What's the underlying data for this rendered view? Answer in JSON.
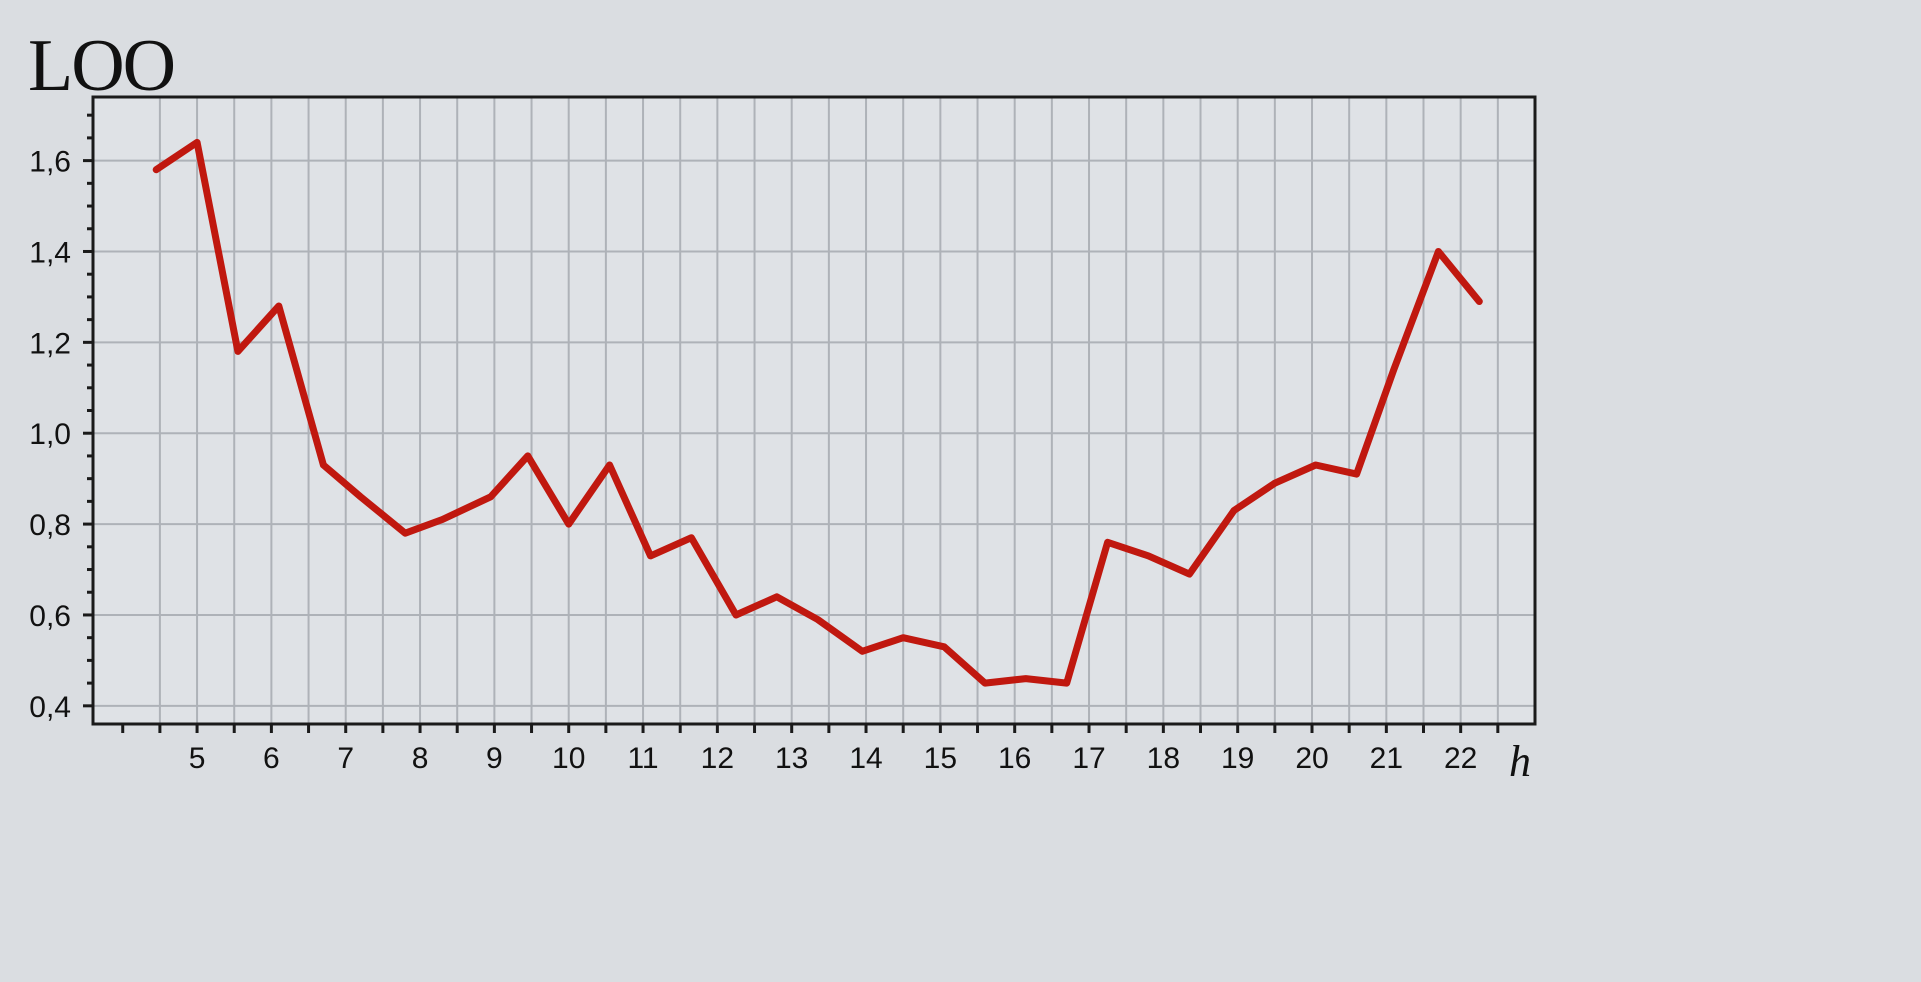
{
  "chart_data": {
    "type": "line",
    "title": "LOO",
    "xlabel": "h",
    "ylabel": "",
    "xlim": [
      3.6,
      23.0
    ],
    "ylim": [
      0.36,
      1.74
    ],
    "x_ticks": [
      5,
      6,
      7,
      8,
      9,
      10,
      11,
      12,
      13,
      14,
      15,
      16,
      17,
      18,
      19,
      20,
      21,
      22
    ],
    "y_ticks": [
      0.4,
      0.6,
      0.8,
      1.0,
      1.2,
      1.4,
      1.6
    ],
    "y_tick_labels": [
      "0,4",
      "0,6",
      "0,8",
      "1,0",
      "1,2",
      "1,4",
      "1,6"
    ],
    "grid": true,
    "line_color": "#c0180f",
    "series": [
      {
        "x": [
          4.45,
          5.0,
          5.55,
          6.1,
          6.7,
          7.2,
          7.8,
          8.3,
          8.95,
          9.45,
          10.0,
          10.55,
          11.1,
          11.65,
          12.25,
          12.8,
          13.35,
          13.95,
          14.5,
          15.05,
          15.6,
          16.15,
          16.7,
          17.25,
          17.8,
          18.35,
          18.95,
          19.5,
          20.05,
          20.6,
          21.1,
          21.7,
          22.25
        ],
        "values": [
          1.58,
          1.64,
          1.18,
          1.28,
          0.93,
          0.86,
          0.78,
          0.81,
          0.86,
          0.95,
          0.8,
          0.93,
          0.73,
          0.77,
          0.6,
          0.64,
          0.59,
          0.52,
          0.55,
          0.53,
          0.45,
          0.46,
          0.45,
          0.76,
          0.73,
          0.69,
          0.83,
          0.89,
          0.93,
          0.91,
          1.14,
          1.4,
          1.29
        ]
      }
    ]
  }
}
